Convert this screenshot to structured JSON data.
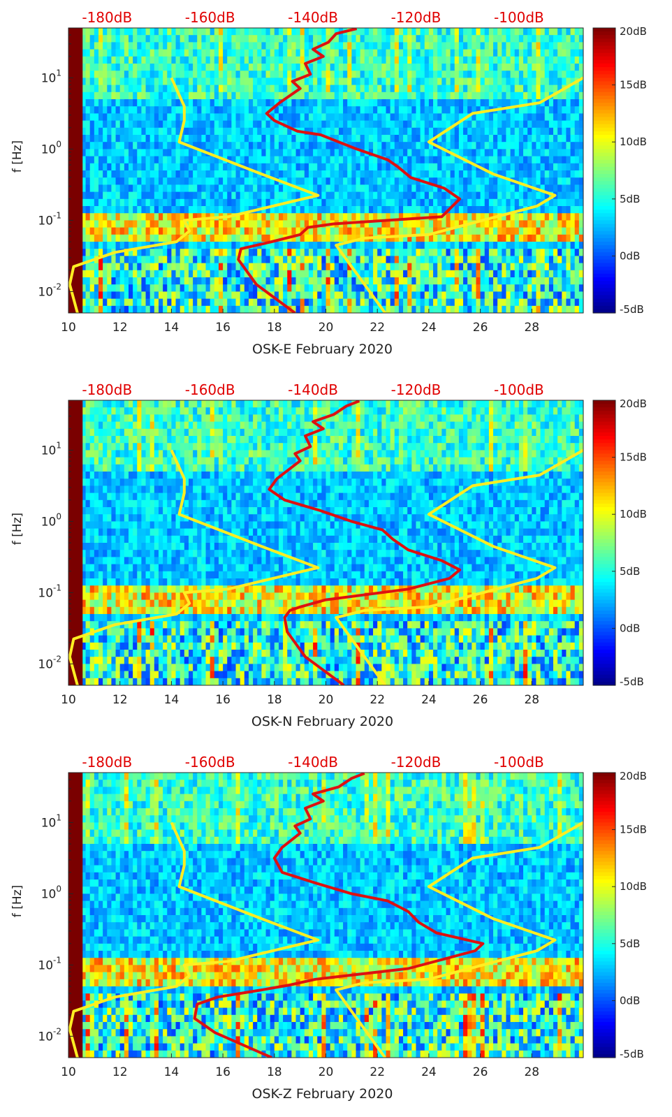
{
  "chart_data": [
    {
      "type": "heatmap",
      "panel_id": "E",
      "title": "",
      "xlabel": "OSK-E February 2020",
      "ylabel": "f [Hz]",
      "xlim": [
        10,
        30
      ],
      "ylim_log10": [
        -2.3,
        1.7
      ],
      "x_ticks": [
        "10",
        "12",
        "14",
        "16",
        "18",
        "20",
        "22",
        "24",
        "26",
        "28"
      ],
      "x_tick_values": [
        10,
        12,
        14,
        16,
        18,
        20,
        22,
        24,
        26,
        28
      ],
      "y_ticks": [
        "10^{-2}",
        "10^{-1}",
        "10^{0}",
        "10^{1}"
      ],
      "y_tick_exponents": [
        -2,
        -1,
        0,
        1
      ],
      "top_axis_labels": [
        "-180dB",
        "-160dB",
        "-140dB",
        "-120dB",
        "-100dB"
      ],
      "top_axis_positions": [
        11.5,
        15.5,
        19.5,
        23.5,
        27.5
      ],
      "colorbar": {
        "labels": [
          "20dB",
          "15dB",
          "10dB",
          "5dB",
          "0dB",
          "-5dB"
        ],
        "range": [
          -5,
          20
        ]
      },
      "series": [
        {
          "name": "noise model low (yellow)",
          "color": "#ffee22",
          "points": [
            [
              10.35,
              -2.3
            ],
            [
              10.05,
              -1.9
            ],
            [
              10.2,
              -1.65
            ],
            [
              11.8,
              -1.45
            ],
            [
              14.2,
              -1.3
            ],
            [
              14.7,
              -1.15
            ],
            [
              14.5,
              -1.0
            ],
            [
              16.2,
              -0.95
            ],
            [
              19.1,
              -0.7
            ],
            [
              19.7,
              -0.65
            ],
            [
              17.5,
              -0.35
            ],
            [
              14.3,
              0.1
            ],
            [
              14.5,
              0.4
            ],
            [
              14.5,
              0.6
            ],
            [
              14.0,
              1.0
            ]
          ]
        },
        {
          "name": "noise model high (yellow)",
          "color": "#ffee22",
          "points": [
            [
              22.3,
              -2.3
            ],
            [
              20.4,
              -1.35
            ],
            [
              21.5,
              -1.25
            ],
            [
              24.0,
              -1.2
            ],
            [
              28.2,
              -0.8
            ],
            [
              28.9,
              -0.65
            ],
            [
              26.5,
              -0.35
            ],
            [
              24.0,
              0.1
            ],
            [
              25.7,
              0.5
            ],
            [
              28.3,
              0.65
            ],
            [
              30.0,
              1.0
            ]
          ]
        },
        {
          "name": "median PSD (red)",
          "color": "#dd1111",
          "points": [
            [
              18.8,
              -2.3
            ],
            [
              17.3,
              -1.9
            ],
            [
              16.6,
              -1.55
            ],
            [
              16.7,
              -1.4
            ],
            [
              17.9,
              -1.3
            ],
            [
              19.0,
              -1.2
            ],
            [
              19.3,
              -1.1
            ],
            [
              20.3,
              -1.05
            ],
            [
              24.5,
              -0.95
            ],
            [
              25.2,
              -0.7
            ],
            [
              24.6,
              -0.55
            ],
            [
              23.3,
              -0.4
            ],
            [
              22.8,
              -0.25
            ],
            [
              22.4,
              -0.15
            ],
            [
              21.2,
              0.0
            ],
            [
              19.8,
              0.2
            ],
            [
              18.9,
              0.25
            ],
            [
              18.0,
              0.4
            ],
            [
              17.7,
              0.5
            ],
            [
              18.2,
              0.65
            ],
            [
              19.0,
              0.85
            ],
            [
              18.7,
              0.95
            ],
            [
              19.4,
              1.05
            ],
            [
              19.2,
              1.2
            ],
            [
              19.9,
              1.3
            ],
            [
              19.5,
              1.4
            ],
            [
              20.1,
              1.5
            ],
            [
              20.4,
              1.62
            ],
            [
              21.2,
              1.69
            ]
          ]
        }
      ]
    },
    {
      "type": "heatmap",
      "panel_id": "N",
      "title": "",
      "xlabel": "OSK-N February 2020",
      "ylabel": "f [Hz]",
      "xlim": [
        10,
        30
      ],
      "ylim_log10": [
        -2.3,
        1.7
      ],
      "x_ticks": [
        "10",
        "12",
        "14",
        "16",
        "18",
        "20",
        "22",
        "24",
        "26",
        "28"
      ],
      "x_tick_values": [
        10,
        12,
        14,
        16,
        18,
        20,
        22,
        24,
        26,
        28
      ],
      "y_ticks": [
        "10^{-2}",
        "10^{-1}",
        "10^{0}",
        "10^{1}"
      ],
      "y_tick_exponents": [
        -2,
        -1,
        0,
        1
      ],
      "top_axis_labels": [
        "-180dB",
        "-160dB",
        "-140dB",
        "-120dB",
        "-100dB"
      ],
      "top_axis_positions": [
        11.5,
        15.5,
        19.5,
        23.5,
        27.5
      ],
      "colorbar": {
        "labels": [
          "20dB",
          "15dB",
          "10dB",
          "5dB",
          "0dB",
          "-5dB"
        ],
        "range": [
          -5,
          20
        ]
      },
      "series": [
        {
          "name": "noise model low (yellow)",
          "color": "#ffee22",
          "points": [
            [
              10.35,
              -2.3
            ],
            [
              10.05,
              -1.9
            ],
            [
              10.2,
              -1.65
            ],
            [
              11.8,
              -1.45
            ],
            [
              14.2,
              -1.3
            ],
            [
              14.7,
              -1.15
            ],
            [
              14.5,
              -1.0
            ],
            [
              16.2,
              -0.95
            ],
            [
              19.1,
              -0.7
            ],
            [
              19.7,
              -0.65
            ],
            [
              17.5,
              -0.35
            ],
            [
              14.3,
              0.1
            ],
            [
              14.5,
              0.4
            ],
            [
              14.5,
              0.6
            ],
            [
              14.0,
              1.0
            ]
          ]
        },
        {
          "name": "noise model high (yellow)",
          "color": "#ffee22",
          "points": [
            [
              22.3,
              -2.3
            ],
            [
              20.4,
              -1.35
            ],
            [
              21.5,
              -1.25
            ],
            [
              24.0,
              -1.2
            ],
            [
              28.2,
              -0.8
            ],
            [
              28.9,
              -0.65
            ],
            [
              26.5,
              -0.35
            ],
            [
              24.0,
              0.1
            ],
            [
              25.7,
              0.5
            ],
            [
              28.3,
              0.65
            ],
            [
              30.0,
              1.0
            ]
          ]
        },
        {
          "name": "median PSD (red)",
          "color": "#dd1111",
          "points": [
            [
              20.7,
              -2.3
            ],
            [
              19.2,
              -1.9
            ],
            [
              18.5,
              -1.55
            ],
            [
              18.4,
              -1.35
            ],
            [
              18.6,
              -1.25
            ],
            [
              19.0,
              -1.2
            ],
            [
              20.0,
              -1.1
            ],
            [
              23.2,
              -0.95
            ],
            [
              24.8,
              -0.8
            ],
            [
              25.2,
              -0.68
            ],
            [
              24.5,
              -0.55
            ],
            [
              23.2,
              -0.4
            ],
            [
              22.6,
              -0.25
            ],
            [
              22.2,
              -0.12
            ],
            [
              21.0,
              0.0
            ],
            [
              19.8,
              0.15
            ],
            [
              18.4,
              0.3
            ],
            [
              17.8,
              0.45
            ],
            [
              18.1,
              0.6
            ],
            [
              19.0,
              0.85
            ],
            [
              18.8,
              0.95
            ],
            [
              19.4,
              1.05
            ],
            [
              19.2,
              1.2
            ],
            [
              19.9,
              1.3
            ],
            [
              19.5,
              1.4
            ],
            [
              20.3,
              1.5
            ],
            [
              20.8,
              1.62
            ],
            [
              21.3,
              1.69
            ]
          ]
        }
      ]
    },
    {
      "type": "heatmap",
      "panel_id": "Z",
      "title": "",
      "xlabel": "OSK-Z February 2020",
      "ylabel": "f [Hz]",
      "xlim": [
        10,
        30
      ],
      "ylim_log10": [
        -2.3,
        1.7
      ],
      "x_ticks": [
        "10",
        "12",
        "14",
        "16",
        "18",
        "20",
        "22",
        "24",
        "26",
        "28"
      ],
      "x_tick_values": [
        10,
        12,
        14,
        16,
        18,
        20,
        22,
        24,
        26,
        28
      ],
      "y_ticks": [
        "10^{-2}",
        "10^{-1}",
        "10^{0}",
        "10^{1}"
      ],
      "y_tick_exponents": [
        -2,
        -1,
        0,
        1
      ],
      "top_axis_labels": [
        "-180dB",
        "-160dB",
        "-140dB",
        "-120dB",
        "-100dB"
      ],
      "top_axis_positions": [
        11.5,
        15.5,
        19.5,
        23.5,
        27.5
      ],
      "colorbar": {
        "labels": [
          "20dB",
          "15dB",
          "10dB",
          "5dB",
          "0dB",
          "-5dB"
        ],
        "range": [
          -5,
          20
        ]
      },
      "series": [
        {
          "name": "noise model low (yellow)",
          "color": "#ffee22",
          "points": [
            [
              10.35,
              -2.3
            ],
            [
              10.05,
              -1.9
            ],
            [
              10.2,
              -1.65
            ],
            [
              11.8,
              -1.45
            ],
            [
              14.2,
              -1.3
            ],
            [
              14.7,
              -1.15
            ],
            [
              14.5,
              -1.0
            ],
            [
              16.2,
              -0.95
            ],
            [
              19.1,
              -0.7
            ],
            [
              19.7,
              -0.65
            ],
            [
              17.5,
              -0.35
            ],
            [
              14.3,
              0.1
            ],
            [
              14.5,
              0.4
            ],
            [
              14.5,
              0.6
            ],
            [
              14.0,
              1.0
            ]
          ]
        },
        {
          "name": "noise model high (yellow)",
          "color": "#ffee22",
          "points": [
            [
              22.3,
              -2.3
            ],
            [
              20.4,
              -1.35
            ],
            [
              21.5,
              -1.25
            ],
            [
              24.0,
              -1.2
            ],
            [
              28.2,
              -0.8
            ],
            [
              28.9,
              -0.65
            ],
            [
              26.5,
              -0.35
            ],
            [
              24.0,
              0.1
            ],
            [
              25.7,
              0.5
            ],
            [
              28.3,
              0.65
            ],
            [
              30.0,
              1.0
            ]
          ]
        },
        {
          "name": "median PSD (red)",
          "color": "#dd1111",
          "points": [
            [
              17.9,
              -2.3
            ],
            [
              15.7,
              -1.95
            ],
            [
              14.9,
              -1.75
            ],
            [
              15.0,
              -1.55
            ],
            [
              15.8,
              -1.45
            ],
            [
              17.5,
              -1.35
            ],
            [
              18.6,
              -1.28
            ],
            [
              19.6,
              -1.2
            ],
            [
              23.2,
              -1.05
            ],
            [
              25.8,
              -0.8
            ],
            [
              26.1,
              -0.7
            ],
            [
              24.3,
              -0.55
            ],
            [
              23.6,
              -0.4
            ],
            [
              23.2,
              -0.25
            ],
            [
              22.4,
              -0.1
            ],
            [
              21.0,
              0.0
            ],
            [
              19.6,
              0.15
            ],
            [
              18.3,
              0.3
            ],
            [
              18.0,
              0.5
            ],
            [
              18.3,
              0.65
            ],
            [
              19.0,
              0.85
            ],
            [
              18.8,
              0.95
            ],
            [
              19.4,
              1.05
            ],
            [
              19.2,
              1.2
            ],
            [
              19.9,
              1.3
            ],
            [
              19.5,
              1.4
            ],
            [
              20.5,
              1.5
            ],
            [
              21.0,
              1.62
            ],
            [
              21.5,
              1.69
            ]
          ]
        }
      ]
    }
  ]
}
